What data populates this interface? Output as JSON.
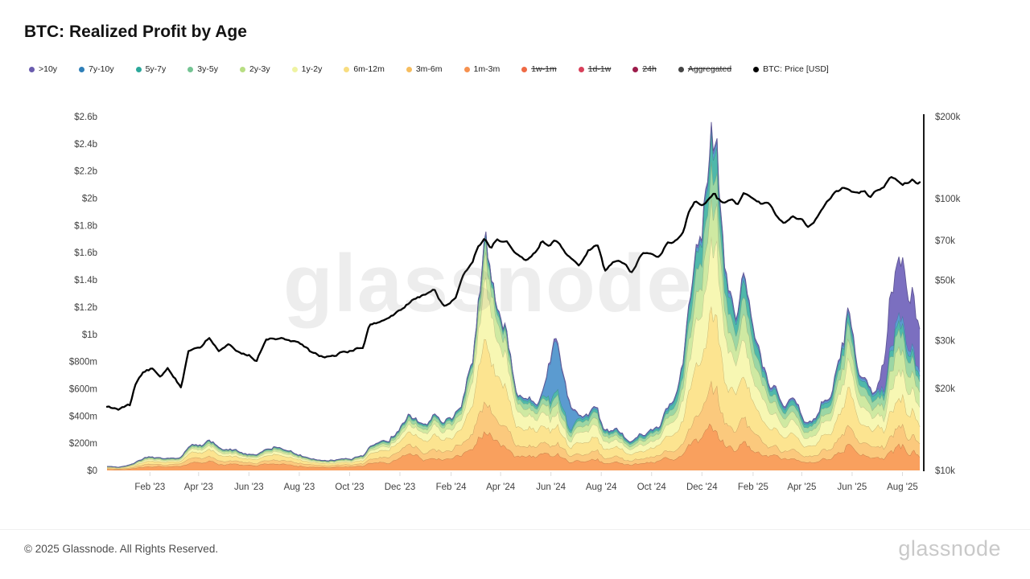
{
  "title": "BTC: Realized Profit by Age",
  "watermark": "glassnode",
  "footer": {
    "copyright": "© 2025 Glassnode. All Rights Reserved.",
    "wordmark": "glassnode"
  },
  "legend": [
    {
      "id": "gt10y",
      "label": ">10y",
      "color": "#6a5cae",
      "disabled": false
    },
    {
      "id": "y7_10",
      "label": "7y-10y",
      "color": "#2f7fb8",
      "disabled": false
    },
    {
      "id": "y5_7",
      "label": "5y-7y",
      "color": "#2ca89b",
      "disabled": false
    },
    {
      "id": "y3_5",
      "label": "3y-5y",
      "color": "#74c493",
      "disabled": false
    },
    {
      "id": "y2_3",
      "label": "2y-3y",
      "color": "#b8de83",
      "disabled": false
    },
    {
      "id": "y1_2",
      "label": "1y-2y",
      "color": "#eff3a2",
      "disabled": false
    },
    {
      "id": "m6_12",
      "label": "6m-12m",
      "color": "#f8dd80",
      "disabled": false
    },
    {
      "id": "m3_6",
      "label": "3m-6m",
      "color": "#f6bd5e",
      "disabled": false
    },
    {
      "id": "m1_3",
      "label": "1m-3m",
      "color": "#f6914f",
      "disabled": false
    },
    {
      "id": "w1_m1",
      "label": "1w-1m",
      "color": "#ef6a45",
      "disabled": true
    },
    {
      "id": "d1_w1",
      "label": "1d-1w",
      "color": "#d8405a",
      "disabled": true
    },
    {
      "id": "h24",
      "label": "24h",
      "color": "#9c1b4a",
      "disabled": true
    },
    {
      "id": "agg",
      "label": "Aggregated",
      "color": "#454545",
      "disabled": true
    },
    {
      "id": "price",
      "label": "BTC: Price [USD]",
      "color": "#000000",
      "disabled": false
    }
  ],
  "chart_data": {
    "type": "stacked_area_with_line",
    "title": "BTC: Realized Profit by Age",
    "grid": false,
    "left_axis": {
      "scale": "linear",
      "unit": "USD realized profit",
      "range_m": [
        0,
        2600
      ],
      "ticks": [
        {
          "v": 0,
          "l": "$0"
        },
        {
          "v": 200,
          "l": "$200m"
        },
        {
          "v": 400,
          "l": "$400m"
        },
        {
          "v": 600,
          "l": "$600m"
        },
        {
          "v": 800,
          "l": "$800m"
        },
        {
          "v": 1000,
          "l": "$1b"
        },
        {
          "v": 1200,
          "l": "$1.2b"
        },
        {
          "v": 1400,
          "l": "$1.4b"
        },
        {
          "v": 1600,
          "l": "$1.6b"
        },
        {
          "v": 1800,
          "l": "$1.8b"
        },
        {
          "v": 2000,
          "l": "$2b"
        },
        {
          "v": 2200,
          "l": "$2.2b"
        },
        {
          "v": 2400,
          "l": "$2.4b"
        },
        {
          "v": 2600,
          "l": "$2.6b"
        }
      ]
    },
    "right_axis": {
      "scale": "log",
      "unit": "BTC price USD (thousands)",
      "range_k": [
        10,
        200
      ],
      "ticks": [
        {
          "v": 10,
          "l": "$10k"
        },
        {
          "v": 20,
          "l": "$20k"
        },
        {
          "v": 30,
          "l": "$30k"
        },
        {
          "v": 50,
          "l": "$50k"
        },
        {
          "v": 70,
          "l": "$70k"
        },
        {
          "v": 100,
          "l": "$100k"
        },
        {
          "v": 200,
          "l": "$200k"
        }
      ]
    },
    "x_axis": {
      "range": [
        "2022-12-11",
        "2025-08-22"
      ],
      "ticks": [
        {
          "d": "2023-02-01",
          "l": "Feb '23"
        },
        {
          "d": "2023-04-01",
          "l": "Apr '23"
        },
        {
          "d": "2023-06-01",
          "l": "Jun '23"
        },
        {
          "d": "2023-08-01",
          "l": "Aug '23"
        },
        {
          "d": "2023-10-01",
          "l": "Oct '23"
        },
        {
          "d": "2023-12-01",
          "l": "Dec '23"
        },
        {
          "d": "2024-02-01",
          "l": "Feb '24"
        },
        {
          "d": "2024-04-01",
          "l": "Apr '24"
        },
        {
          "d": "2024-06-01",
          "l": "Jun '24"
        },
        {
          "d": "2024-08-01",
          "l": "Aug '24"
        },
        {
          "d": "2024-10-01",
          "l": "Oct '24"
        },
        {
          "d": "2024-12-01",
          "l": "Dec '24"
        },
        {
          "d": "2025-02-01",
          "l": "Feb '25"
        },
        {
          "d": "2025-04-01",
          "l": "Apr '25"
        },
        {
          "d": "2025-06-01",
          "l": "Jun '25"
        },
        {
          "d": "2025-08-01",
          "l": "Aug '25"
        }
      ]
    },
    "bands_bottom_to_top": [
      {
        "id": "m1_3",
        "label": "1m-3m",
        "color": "#f9a05e"
      },
      {
        "id": "m3_6",
        "label": "3m-6m",
        "color": "#fbc97d"
      },
      {
        "id": "m6_12",
        "label": "6m-12m",
        "color": "#fce490"
      },
      {
        "id": "y1_2",
        "label": "1y-2y",
        "color": "#f7f7b3"
      },
      {
        "id": "y2_3",
        "label": "2y-3y",
        "color": "#cfe9a2"
      },
      {
        "id": "y3_5",
        "label": "3y-5y",
        "color": "#9bd6a4"
      },
      {
        "id": "y5_7",
        "label": "5y-7y",
        "color": "#4fb8ab"
      },
      {
        "id": "y7_10",
        "label": "7y-10y",
        "color": "#5b9bd0"
      },
      {
        "id": "gt10y",
        "label": ">10y",
        "color": "#7b6fc0"
      }
    ],
    "price_series": {
      "label": "BTC: Price [USD]",
      "color": "#000000"
    },
    "mixes": {
      "A": [
        0.3,
        0.18,
        0.22,
        0.12,
        0.08,
        0.055,
        0.025,
        0.012,
        0.008
      ],
      "B": [
        0.24,
        0.15,
        0.25,
        0.16,
        0.09,
        0.06,
        0.035,
        0.012,
        0.003
      ],
      "C": [
        0.17,
        0.14,
        0.28,
        0.22,
        0.1,
        0.055,
        0.02,
        0.01,
        0.005
      ],
      "D": [
        0.2,
        0.14,
        0.24,
        0.18,
        0.1,
        0.07,
        0.04,
        0.025,
        0.005
      ],
      "E": [
        0.12,
        0.09,
        0.13,
        0.11,
        0.08,
        0.06,
        0.04,
        0.35,
        0.02
      ],
      "F": [
        0.2,
        0.13,
        0.22,
        0.17,
        0.11,
        0.08,
        0.05,
        0.03,
        0.01
      ],
      "G": [
        0.14,
        0.12,
        0.22,
        0.19,
        0.12,
        0.1,
        0.08,
        0.02,
        0.01
      ],
      "H": [
        0.16,
        0.12,
        0.22,
        0.18,
        0.12,
        0.1,
        0.06,
        0.025,
        0.015
      ],
      "I": [
        0.11,
        0.09,
        0.14,
        0.13,
        0.1,
        0.08,
        0.04,
        0.03,
        0.28
      ]
    },
    "keyframes": [
      [
        "2022-12-11",
        30,
        17.15,
        "A"
      ],
      [
        "2022-12-26",
        24,
        16.8,
        "A"
      ],
      [
        "2023-01-08",
        40,
        17.2,
        "A"
      ],
      [
        "2023-01-15",
        60,
        20.8,
        "A"
      ],
      [
        "2023-01-24",
        90,
        22.8,
        "A"
      ],
      [
        "2023-02-03",
        110,
        23.5,
        "A"
      ],
      [
        "2023-02-14",
        100,
        22.1,
        "A"
      ],
      [
        "2023-02-22",
        95,
        24.2,
        "A"
      ],
      [
        "2023-03-03",
        90,
        22.3,
        "A"
      ],
      [
        "2023-03-11",
        105,
        20.3,
        "A"
      ],
      [
        "2023-03-20",
        185,
        27.8,
        "A"
      ],
      [
        "2023-04-03",
        200,
        28.0,
        "A"
      ],
      [
        "2023-04-14",
        215,
        30.5,
        "A"
      ],
      [
        "2023-04-25",
        170,
        27.6,
        "A"
      ],
      [
        "2023-05-07",
        160,
        28.6,
        "A"
      ],
      [
        "2023-05-18",
        140,
        26.9,
        "A"
      ],
      [
        "2023-06-01",
        115,
        26.8,
        "A"
      ],
      [
        "2023-06-10",
        105,
        25.6,
        "A"
      ],
      [
        "2023-06-22",
        150,
        30.0,
        "A"
      ],
      [
        "2023-07-03",
        160,
        30.6,
        "A"
      ],
      [
        "2023-07-14",
        150,
        30.3,
        "A"
      ],
      [
        "2023-07-31",
        115,
        29.2,
        "A"
      ],
      [
        "2023-08-17",
        85,
        26.6,
        "A"
      ],
      [
        "2023-09-02",
        70,
        25.8,
        "A"
      ],
      [
        "2023-09-18",
        80,
        26.8,
        "A"
      ],
      [
        "2023-10-02",
        85,
        27.5,
        "A"
      ],
      [
        "2023-10-17",
        115,
        28.4,
        "A"
      ],
      [
        "2023-10-25",
        170,
        34.0,
        "A"
      ],
      [
        "2023-11-06",
        215,
        35.0,
        "A"
      ],
      [
        "2023-11-18",
        230,
        36.5,
        "A"
      ],
      [
        "2023-12-01",
        310,
        38.7,
        "A"
      ],
      [
        "2023-12-11",
        430,
        41.2,
        "A"
      ],
      [
        "2023-12-22",
        390,
        43.8,
        "A"
      ],
      [
        "2024-01-02",
        360,
        45.0,
        "B"
      ],
      [
        "2024-01-11",
        430,
        46.2,
        "B"
      ],
      [
        "2024-01-23",
        330,
        39.9,
        "B"
      ],
      [
        "2024-02-06",
        390,
        43.1,
        "B"
      ],
      [
        "2024-02-15",
        480,
        51.8,
        "B"
      ],
      [
        "2024-02-27",
        780,
        57.0,
        "C"
      ],
      [
        "2024-03-05",
        1250,
        66.0,
        "C"
      ],
      [
        "2024-03-13",
        1620,
        71.5,
        "C"
      ],
      [
        "2024-03-20",
        1280,
        64.0,
        "C"
      ],
      [
        "2024-03-27",
        1150,
        69.5,
        "C"
      ],
      [
        "2024-04-08",
        950,
        69.0,
        "C"
      ],
      [
        "2024-04-18",
        650,
        61.5,
        "C"
      ],
      [
        "2024-05-01",
        480,
        58.0,
        "D"
      ],
      [
        "2024-05-16",
        520,
        65.0,
        "D"
      ],
      [
        "2024-05-21",
        600,
        70.0,
        "D"
      ],
      [
        "2024-06-01",
        820,
        67.8,
        "E"
      ],
      [
        "2024-06-06",
        1050,
        70.8,
        "E"
      ],
      [
        "2024-06-14",
        800,
        66.0,
        "E"
      ],
      [
        "2024-06-24",
        520,
        60.5,
        "E"
      ],
      [
        "2024-07-05",
        420,
        55.5,
        "F"
      ],
      [
        "2024-07-16",
        450,
        64.0,
        "F"
      ],
      [
        "2024-07-27",
        470,
        67.5,
        "F"
      ],
      [
        "2024-08-05",
        300,
        53.8,
        "F"
      ],
      [
        "2024-08-20",
        290,
        59.5,
        "F"
      ],
      [
        "2024-08-28",
        250,
        58.5,
        "F"
      ],
      [
        "2024-09-06",
        225,
        54.0,
        "F"
      ],
      [
        "2024-09-20",
        265,
        63.2,
        "F"
      ],
      [
        "2024-09-30",
        300,
        63.5,
        "F"
      ],
      [
        "2024-10-10",
        310,
        60.5,
        "F"
      ],
      [
        "2024-10-20",
        420,
        68.5,
        "F"
      ],
      [
        "2024-10-31",
        520,
        70.0,
        "G"
      ],
      [
        "2024-11-09",
        780,
        76.5,
        "G"
      ],
      [
        "2024-11-14",
        1100,
        88.5,
        "G"
      ],
      [
        "2024-11-22",
        1480,
        98.5,
        "G"
      ],
      [
        "2024-12-01",
        1620,
        96.5,
        "G"
      ],
      [
        "2024-12-08",
        2050,
        99.5,
        "G"
      ],
      [
        "2024-12-12",
        2450,
        101.0,
        "G"
      ],
      [
        "2024-12-16",
        2150,
        105.5,
        "G"
      ],
      [
        "2024-12-19",
        2320,
        100.5,
        "G"
      ],
      [
        "2024-12-28",
        1500,
        95.5,
        "G"
      ],
      [
        "2025-01-06",
        1200,
        99.0,
        "G"
      ],
      [
        "2025-01-13",
        1050,
        94.5,
        "G"
      ],
      [
        "2025-01-21",
        1420,
        106.0,
        "G"
      ],
      [
        "2025-01-31",
        1080,
        102.0,
        "G"
      ],
      [
        "2025-02-10",
        840,
        97.5,
        "H"
      ],
      [
        "2025-02-21",
        700,
        96.5,
        "H"
      ],
      [
        "2025-03-03",
        560,
        86.0,
        "H"
      ],
      [
        "2025-03-11",
        480,
        81.5,
        "H"
      ],
      [
        "2025-03-21",
        520,
        85.5,
        "H"
      ],
      [
        "2025-04-01",
        420,
        83.0,
        "H"
      ],
      [
        "2025-04-08",
        350,
        76.5,
        "H"
      ],
      [
        "2025-04-20",
        400,
        85.0,
        "H"
      ],
      [
        "2025-04-29",
        540,
        94.5,
        "H"
      ],
      [
        "2025-05-10",
        660,
        103.0,
        "H"
      ],
      [
        "2025-05-21",
        950,
        108.5,
        "H"
      ],
      [
        "2025-05-27",
        1180,
        109.5,
        "H"
      ],
      [
        "2025-06-06",
        820,
        104.5,
        "H"
      ],
      [
        "2025-06-16",
        680,
        106.5,
        "H"
      ],
      [
        "2025-06-23",
        560,
        100.5,
        "H"
      ],
      [
        "2025-07-01",
        580,
        106.5,
        "H"
      ],
      [
        "2025-07-10",
        820,
        111.5,
        "I"
      ],
      [
        "2025-07-17",
        1300,
        119.5,
        "I"
      ],
      [
        "2025-07-25",
        1480,
        116.0,
        "I"
      ],
      [
        "2025-08-01",
        1540,
        114.0,
        "I"
      ],
      [
        "2025-08-08",
        1280,
        116.5,
        "I"
      ],
      [
        "2025-08-13",
        1380,
        121.0,
        "I"
      ],
      [
        "2025-08-18",
        1080,
        116.0,
        "I"
      ],
      [
        "2025-08-22",
        980,
        116.8,
        "I"
      ]
    ]
  }
}
